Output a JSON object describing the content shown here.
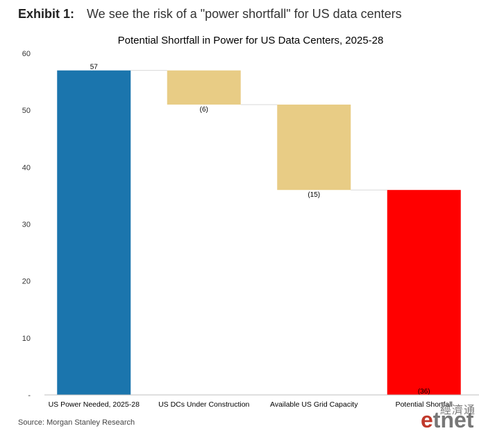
{
  "exhibit": {
    "label": "Exhibit 1:",
    "text": "We see the risk of a \"power shortfall\" for US data centers"
  },
  "source": "Source: Morgan Stanley Research",
  "watermark": {
    "chinese": "經濟通",
    "brand_prefix": "e",
    "brand_rest": "tnet"
  },
  "chart_data": {
    "type": "bar",
    "subtype": "waterfall",
    "title": "Potential Shortfall in Power for US Data Centers, 2025-28",
    "categories": [
      "US Power Needed, 2025-28",
      "US DCs Under Construction",
      "Available US Grid Capacity",
      "Potential Shortfall"
    ],
    "values": [
      57,
      -6,
      -15,
      36
    ],
    "bar_start": [
      0,
      57,
      51,
      0
    ],
    "bar_end": [
      57,
      51,
      36,
      36
    ],
    "data_labels": [
      "57",
      "(6)",
      "(15)",
      "(36)"
    ],
    "colors": [
      "#1b75ad",
      "#e8cc85",
      "#e8cc85",
      "#ff0000"
    ],
    "ylim": [
      0,
      60
    ],
    "yticks": [
      0,
      10,
      20,
      30,
      40,
      50,
      60
    ],
    "ytick_labels": [
      "-",
      "10",
      "20",
      "30",
      "40",
      "50",
      "60"
    ],
    "connector_color": "#d9d9d9",
    "grid": false,
    "legend": "none"
  }
}
